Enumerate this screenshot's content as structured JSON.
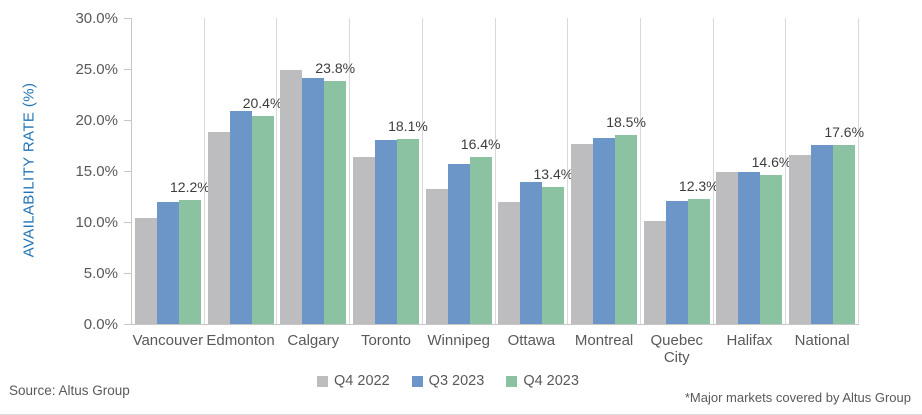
{
  "chart": {
    "y_axis_title": "AVAILABILITY RATE (%)",
    "axis_title_color": "#2173B4",
    "y_ticks": [
      {
        "value": 0,
        "label": "0.0%"
      },
      {
        "value": 5,
        "label": "5.0%"
      },
      {
        "value": 10,
        "label": "10.0%"
      },
      {
        "value": 15,
        "label": "15.0%"
      },
      {
        "value": 20,
        "label": "20.0%"
      },
      {
        "value": 25,
        "label": "25.0%"
      },
      {
        "value": 30,
        "label": "30.0%"
      }
    ]
  },
  "chart_data": {
    "type": "bar",
    "title": "",
    "ylabel": "AVAILABILITY RATE (%)",
    "ylim": [
      0,
      30
    ],
    "y_tick_step": 5,
    "grid": "vertical-category-separators",
    "legend_position": "bottom-center",
    "categories": [
      "Vancouver",
      "Edmonton",
      "Calgary",
      "Toronto",
      "Winnipeg",
      "Ottawa",
      "Montreal",
      "Quebec City",
      "Halifax",
      "National"
    ],
    "series": [
      {
        "name": "Q4 2022",
        "color": "#BDBDBF",
        "values": [
          10.4,
          18.8,
          24.9,
          16.4,
          13.2,
          12.0,
          17.7,
          10.1,
          14.9,
          16.6
        ]
      },
      {
        "name": "Q3 2023",
        "color": "#6C95C8",
        "values": [
          12.0,
          20.9,
          24.1,
          18.0,
          15.7,
          13.9,
          18.2,
          12.1,
          14.9,
          17.6
        ]
      },
      {
        "name": "Q4 2023",
        "color": "#8AC2A2",
        "values": [
          12.2,
          20.4,
          23.8,
          18.1,
          16.4,
          13.4,
          18.5,
          12.3,
          14.6,
          17.6
        ],
        "data_labels": [
          "12.2%",
          "20.4%",
          "23.8%",
          "18.1%",
          "16.4%",
          "13.4%",
          "18.5%",
          "12.3%",
          "14.6%",
          "17.6%"
        ]
      }
    ]
  },
  "footer": {
    "source": "Source: Altus Group",
    "note": "*Major markets covered by Altus Group"
  }
}
